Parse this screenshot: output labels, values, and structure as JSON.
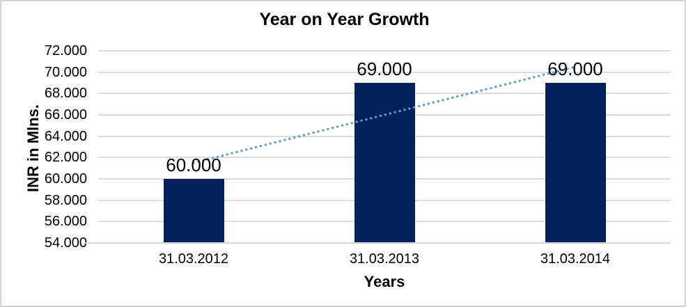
{
  "window": {
    "background": "#FFFFFF",
    "border_color": "#D2D2D2"
  },
  "chart_data": {
    "type": "bar",
    "title": "Year on Year Growth",
    "xlabel": "Years",
    "ylabel": "INR in Mlns.",
    "categories": [
      "31.03.2012",
      "31.03.2013",
      "31.03.2014"
    ],
    "values": [
      60,
      69,
      69
    ],
    "data_labels": [
      "60.000",
      "69.000",
      "69.000"
    ],
    "ylim": [
      54,
      72
    ],
    "ytick_interval": 2,
    "ytick_labels": [
      "72.000",
      "70.000",
      "68.000",
      "66.000",
      "64.000",
      "62.000",
      "60.000",
      "58.000",
      "56.000",
      "54.000"
    ],
    "grid": true,
    "legend": "none",
    "trendline": {
      "type": "linear",
      "style": "dotted",
      "fit_endpoints": [
        61.5,
        70.5
      ]
    },
    "colors": {
      "bar": "#03215C",
      "trendline": "#5B9BD5",
      "gridline": "#DBDBDB",
      "axis_line": "#D6D6D6",
      "text": "#000000"
    }
  }
}
